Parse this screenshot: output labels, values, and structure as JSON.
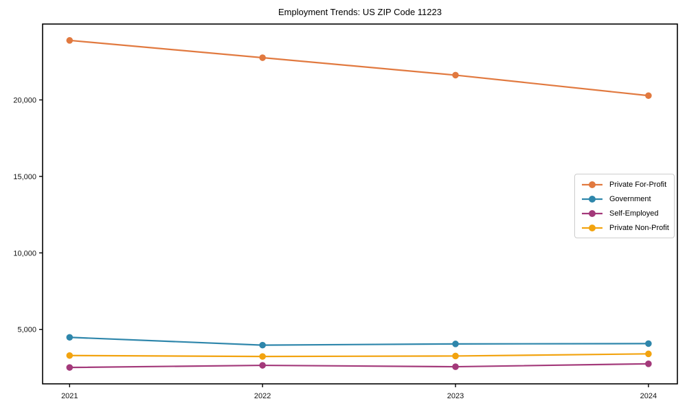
{
  "chart_data": {
    "type": "line",
    "title": "Employment Trends: US ZIP Code 11223",
    "x": [
      2021,
      2022,
      2023,
      2024
    ],
    "x_tick_labels": [
      "2021",
      "2022",
      "2023",
      "2024"
    ],
    "y_ticks": [
      5000,
      10000,
      15000,
      20000
    ],
    "y_tick_labels": [
      "5,000",
      "10,000",
      "15,000",
      "20,000"
    ],
    "xlim": [
      2020.86,
      2024.15
    ],
    "ylim": [
      1440,
      24960
    ],
    "grid": false,
    "legend_position": "center-right",
    "marker": "circle",
    "series": [
      {
        "name": "Private For-Profit",
        "color": "#E1793F",
        "values": [
          23890,
          22760,
          21620,
          20280
        ]
      },
      {
        "name": "Government",
        "color": "#2E86AB",
        "values": [
          4480,
          3970,
          4050,
          4070
        ]
      },
      {
        "name": "Self-Employed",
        "color": "#A3397A",
        "values": [
          2510,
          2650,
          2560,
          2750
        ]
      },
      {
        "name": "Private Non-Profit",
        "color": "#F2A30F",
        "values": [
          3290,
          3230,
          3260,
          3400
        ]
      }
    ]
  }
}
